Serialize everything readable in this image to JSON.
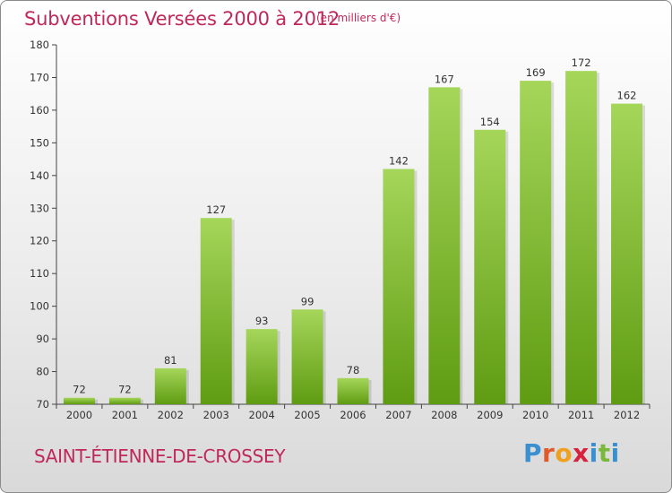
{
  "header": {
    "title": "Subventions Versées 2000 à 2012",
    "unit": "(en milliers d'€)"
  },
  "footer": {
    "commune": "SAINT-ÉTIENNE-DE-CROSSEY",
    "logo_text": "Proxiti"
  },
  "colors": {
    "title": "#c0285a",
    "bar_light": "#a5d65a",
    "bar_dark": "#5f9c12",
    "logo_letters": [
      "#3a8fd0",
      "#e05a2a",
      "#f0a020",
      "#d8203c",
      "#3a8fd0",
      "#7ab83c",
      "#3a8fd0"
    ]
  },
  "chart_data": {
    "type": "bar",
    "categories": [
      "2000",
      "2001",
      "2002",
      "2003",
      "2004",
      "2005",
      "2006",
      "2007",
      "2008",
      "2009",
      "2010",
      "2011",
      "2012"
    ],
    "values": [
      72,
      72,
      81,
      127,
      93,
      99,
      78,
      142,
      167,
      154,
      169,
      172,
      162
    ],
    "ylim": [
      70,
      180
    ],
    "yticks": [
      70,
      80,
      90,
      100,
      110,
      120,
      130,
      140,
      150,
      160,
      170,
      180
    ],
    "grid": false,
    "data_labels": true
  }
}
